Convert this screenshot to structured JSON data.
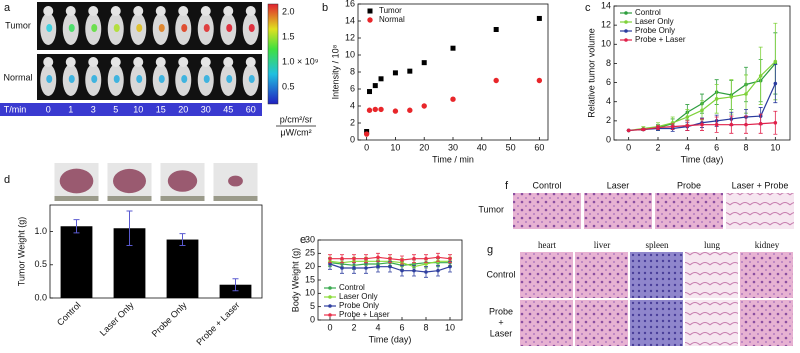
{
  "panel_labels": [
    "a",
    "b",
    "c",
    "d",
    "e",
    "f",
    "g"
  ],
  "panel_a": {
    "row_labels": [
      "Tumor",
      "Normal"
    ],
    "time_label": "T/min",
    "times": [
      "0",
      "1",
      "3",
      "5",
      "10",
      "15",
      "20",
      "30",
      "45",
      "60"
    ],
    "colorbar_ticks": [
      "2.0",
      "1.5",
      "1.0 × 10⁹",
      "0.5"
    ],
    "colorbar_unit": [
      "p/cm²/sr",
      "μW/cm²"
    ]
  },
  "chart_data": [
    {
      "type": "scatter",
      "xlabel": "Time / min",
      "ylabel": "Intensity / 10⁸",
      "x": [
        0,
        1,
        3,
        5,
        10,
        15,
        20,
        30,
        45,
        60
      ],
      "series": [
        {
          "name": "Tumor",
          "color": "#000000",
          "marker": "square",
          "values": [
            1.0,
            5.7,
            6.4,
            7.2,
            7.9,
            8.1,
            9.1,
            10.8,
            13.0,
            14.3
          ]
        },
        {
          "name": "Normal",
          "color": "#e8262a",
          "marker": "circle",
          "values": [
            0.7,
            3.5,
            3.6,
            3.6,
            3.4,
            3.5,
            4.0,
            4.8,
            7.0,
            7.0
          ]
        }
      ],
      "xlim": [
        -3,
        63
      ],
      "xticks": [
        0,
        10,
        20,
        30,
        40,
        50,
        60
      ],
      "ylim": [
        0,
        16
      ],
      "yticks": [
        0,
        2,
        4,
        6,
        8,
        10,
        12,
        14,
        16
      ],
      "legend": "upper left"
    },
    {
      "type": "line",
      "xlabel": "Time (day)",
      "ylabel": "Relative tumor volume",
      "x": [
        0,
        1,
        2,
        3,
        4,
        5,
        6,
        7,
        8,
        9,
        10
      ],
      "series": [
        {
          "name": "Control",
          "color": "#2e9e3e",
          "values": [
            1,
            1.1,
            1.3,
            1.7,
            2.9,
            3.8,
            5.0,
            4.7,
            5.8,
            6.2,
            8.0
          ],
          "errors": [
            0,
            0.1,
            0.3,
            0.5,
            0.8,
            1.0,
            1.3,
            1.5,
            1.8,
            2.2,
            3.2
          ]
        },
        {
          "name": "Laser Only",
          "color": "#7fd23a",
          "values": [
            1,
            1.2,
            1.4,
            1.8,
            2.4,
            3.1,
            4.3,
            4.5,
            4.8,
            6.7,
            8.2
          ],
          "errors": [
            0,
            0.2,
            0.4,
            0.6,
            0.8,
            1.0,
            1.5,
            1.8,
            2.0,
            3.0,
            4.0
          ]
        },
        {
          "name": "Probe Only",
          "color": "#2b3b9e",
          "values": [
            1,
            1.1,
            1.2,
            1.2,
            1.4,
            1.8,
            2.0,
            2.2,
            2.4,
            2.5,
            5.9
          ],
          "errors": [
            0,
            0.1,
            0.2,
            0.3,
            0.4,
            0.5,
            0.6,
            0.7,
            0.8,
            0.9,
            2.0
          ]
        },
        {
          "name": "Probe + Laser",
          "color": "#e0204a",
          "values": [
            1,
            1.1,
            1.3,
            1.4,
            1.5,
            1.6,
            1.6,
            1.6,
            1.6,
            1.7,
            1.8
          ],
          "errors": [
            0,
            0.1,
            0.2,
            0.3,
            0.5,
            0.6,
            0.8,
            0.9,
            0.9,
            1.0,
            1.2
          ]
        }
      ],
      "xlim": [
        -1,
        11
      ],
      "xticks": [
        0,
        2,
        4,
        6,
        8,
        10
      ],
      "ylim": [
        0,
        14
      ],
      "yticks": [
        0,
        2,
        4,
        6,
        8,
        10,
        12,
        14
      ],
      "legend": "upper left"
    },
    {
      "type": "bar",
      "ylabel": "Tumor Weight (g)",
      "categories": [
        "Control",
        "Laser Only",
        "Probe Only",
        "Probe + Laser"
      ],
      "values": [
        1.08,
        1.05,
        0.88,
        0.2
      ],
      "errors": [
        0.1,
        0.26,
        0.09,
        0.09
      ],
      "color": "#000000",
      "ylim": [
        0,
        1.4
      ],
      "yticks": [
        {
          "value": 0,
          "label": "0.0"
        },
        {
          "value": 0.5,
          "label": "0.5"
        },
        {
          "value": 1,
          "label": "1.0"
        }
      ]
    },
    {
      "type": "line",
      "xlabel": "Time (day)",
      "ylabel": "Body Weight (g)",
      "x": [
        0,
        1,
        2,
        3,
        4,
        5,
        6,
        7,
        8,
        9,
        10
      ],
      "series": [
        {
          "name": "Control",
          "color": "#3aaa50",
          "values": [
            21.5,
            21,
            20.5,
            21,
            21,
            21.5,
            20.5,
            21,
            21.5,
            21.5,
            21.5
          ],
          "errors": [
            1.5,
            1.5,
            1.5,
            1.5,
            1.5,
            1.5,
            1.5,
            1.5,
            1.5,
            1.5,
            1.5
          ]
        },
        {
          "name": "Laser Only",
          "color": "#8bdc3a",
          "values": [
            22,
            21.5,
            22,
            22,
            22,
            22,
            21.5,
            20,
            21,
            22,
            22
          ],
          "errors": [
            1.5,
            1.5,
            1.5,
            1.5,
            1.5,
            1.5,
            1.5,
            1.5,
            1.5,
            1.5,
            1.5
          ]
        },
        {
          "name": "Probe Only",
          "color": "#3040a0",
          "values": [
            21,
            19.5,
            19.5,
            19.5,
            20,
            20,
            18.5,
            18.5,
            18,
            18.5,
            20
          ],
          "errors": [
            2,
            2,
            2,
            2,
            2,
            2,
            2,
            2,
            2,
            2,
            2
          ]
        },
        {
          "name": "Probe + Laser",
          "color": "#e8304a",
          "values": [
            23,
            23,
            23,
            23,
            23.5,
            23,
            22.5,
            23,
            23,
            23.5,
            23
          ],
          "errors": [
            1.5,
            1.5,
            1.5,
            1.5,
            1.5,
            1.5,
            1.5,
            1.5,
            1.5,
            1.5,
            1.5
          ]
        }
      ],
      "xlim": [
        -1,
        11
      ],
      "xticks": [
        0,
        2,
        4,
        6,
        8,
        10
      ],
      "ylim": [
        0,
        30
      ],
      "yticks": [
        0,
        5,
        10,
        15,
        20,
        25,
        30
      ],
      "legend": "lower left"
    }
  ],
  "panel_f": {
    "columns": [
      "Control",
      "Laser",
      "Probe",
      "Laser + Probe"
    ],
    "rows": [
      "Tumor"
    ]
  },
  "panel_g": {
    "columns": [
      "heart",
      "liver",
      "spleen",
      "lung",
      "kidney"
    ],
    "rows": [
      [
        "Control"
      ],
      [
        "Probe",
        "+",
        "Laser"
      ]
    ]
  }
}
